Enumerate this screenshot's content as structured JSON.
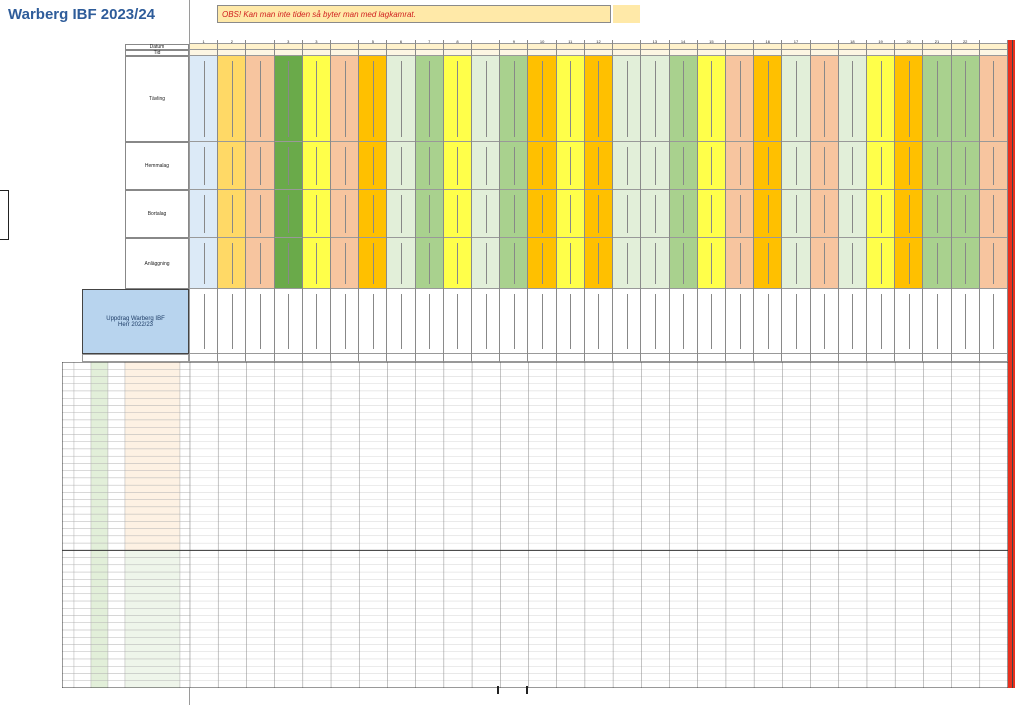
{
  "title": "Warberg IBF 2023/24",
  "notice": "OBS! Kan man inte tiden så byter man med lagkamrat.",
  "labels": {
    "datum": "Datum",
    "tid": "Tid",
    "tavling": "Tävling",
    "hemmalag": "Hemmalag",
    "bortalag": "Bortalag",
    "anlaggning": "Anläggning"
  },
  "uppdrag": {
    "line1": "Uppdrag Warberg IBF",
    "line2": "Herr 2022/23"
  },
  "colors": {
    "white": "#ffffff",
    "light_blue": "#dceaf7",
    "orange_light": "#f7c59f",
    "yellow_orange": "#ffd966",
    "dark_green": "#6aaa4a",
    "yellow": "#ffff4a",
    "orange": "#ffc000",
    "light_green": "#a9d18e",
    "pale_green": "#e2efd9",
    "salmon": "#f4b183",
    "red": "#e8301e"
  },
  "columns": [
    {
      "num": "1",
      "color": "light_blue"
    },
    {
      "num": "2",
      "color": "yellow_orange"
    },
    {
      "num": "",
      "color": "orange_light"
    },
    {
      "num": "3",
      "color": "dark_green"
    },
    {
      "num": "3",
      "color": "yellow"
    },
    {
      "num": "",
      "color": "orange_light"
    },
    {
      "num": "5",
      "color": "orange"
    },
    {
      "num": "6",
      "color": "pale_green"
    },
    {
      "num": "7",
      "color": "light_green"
    },
    {
      "num": "8",
      "color": "yellow"
    },
    {
      "num": "",
      "color": "pale_green"
    },
    {
      "num": "9",
      "color": "light_green"
    },
    {
      "num": "10",
      "color": "orange"
    },
    {
      "num": "11",
      "color": "yellow"
    },
    {
      "num": "12",
      "color": "orange"
    },
    {
      "num": "",
      "color": "pale_green"
    },
    {
      "num": "13",
      "color": "pale_green"
    },
    {
      "num": "14",
      "color": "light_green"
    },
    {
      "num": "15",
      "color": "yellow"
    },
    {
      "num": "",
      "color": "orange_light"
    },
    {
      "num": "16",
      "color": "orange"
    },
    {
      "num": "17",
      "color": "pale_green"
    },
    {
      "num": "",
      "color": "orange_light"
    },
    {
      "num": "18",
      "color": "pale_green"
    },
    {
      "num": "19",
      "color": "yellow"
    },
    {
      "num": "20",
      "color": "orange"
    },
    {
      "num": "21",
      "color": "light_green"
    },
    {
      "num": "22",
      "color": "light_green"
    },
    {
      "num": "",
      "color": "orange_light"
    }
  ]
}
